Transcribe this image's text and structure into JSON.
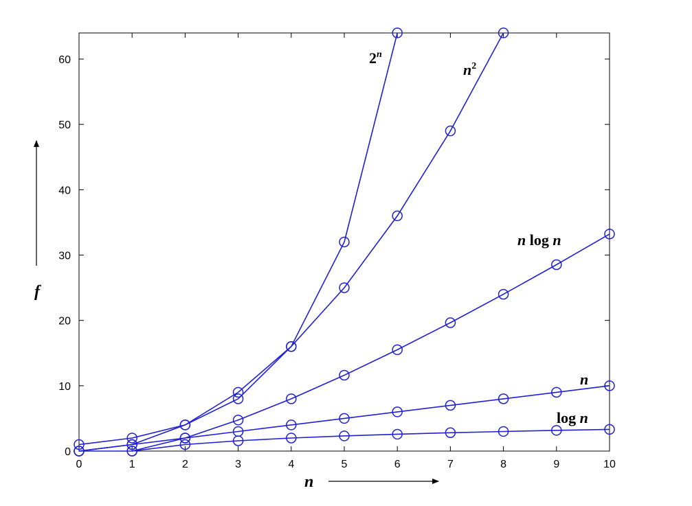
{
  "chart_data": {
    "type": "line",
    "xlabel": "n",
    "ylabel": "f",
    "xlim": [
      0,
      10
    ],
    "ylim": [
      0,
      64
    ],
    "x_ticks": [
      0,
      1,
      2,
      3,
      4,
      5,
      6,
      7,
      8,
      9,
      10
    ],
    "y_ticks": [
      0,
      10,
      20,
      30,
      40,
      50,
      60
    ],
    "grid": false,
    "marker": "circle",
    "line_color": "#1f1fd6",
    "series": [
      {
        "key": "pow2",
        "name_parts": [
          "2",
          "n"
        ],
        "x": [
          0,
          1,
          2,
          3,
          4,
          5,
          6
        ],
        "values": [
          1,
          2,
          4,
          8,
          16,
          32,
          64
        ]
      },
      {
        "key": "sq",
        "name_parts": [
          "n",
          "2"
        ],
        "x": [
          0,
          1,
          2,
          3,
          4,
          5,
          6,
          7,
          8
        ],
        "values": [
          0,
          1,
          4,
          9,
          16,
          25,
          36,
          49,
          64
        ]
      },
      {
        "key": "nlogn",
        "name_parts": [
          "n",
          "log",
          "n"
        ],
        "x": [
          0,
          1,
          2,
          3,
          4,
          5,
          6,
          7,
          8,
          9,
          10
        ],
        "values": [
          0,
          0,
          2,
          4.75,
          8,
          11.61,
          15.51,
          19.65,
          24,
          28.53,
          33.22
        ]
      },
      {
        "key": "lin",
        "name_parts": [
          "n"
        ],
        "x": [
          0,
          1,
          2,
          3,
          4,
          5,
          6,
          7,
          8,
          9,
          10
        ],
        "values": [
          0,
          1,
          2,
          3,
          4,
          5,
          6,
          7,
          8,
          9,
          10
        ]
      },
      {
        "key": "logn",
        "name_parts": [
          "log",
          "n"
        ],
        "x": [
          1,
          2,
          3,
          4,
          5,
          6,
          7,
          8,
          9,
          10
        ],
        "values": [
          0,
          1,
          1.58,
          2,
          2.32,
          2.58,
          2.81,
          3,
          3.17,
          3.32
        ]
      }
    ]
  }
}
